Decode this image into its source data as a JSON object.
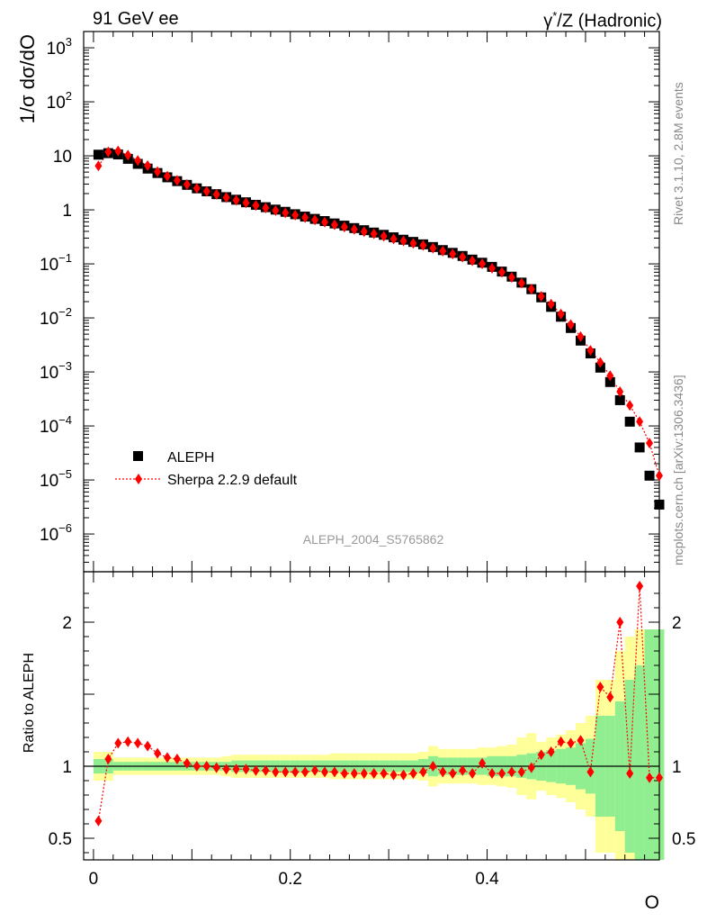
{
  "header": {
    "left": "91 GeV ee",
    "right_gamma": "γ",
    "right_sup": "*",
    "right_rest": "/Z (Hadronic)"
  },
  "side": {
    "rivet": "Rivet 3.1.10,  2.8M events",
    "source": "mcplots.cern.ch [arXiv:1306.3436]"
  },
  "colors": {
    "data": "#000000",
    "mc": "#ff0000",
    "band_inner": "#90ee90",
    "band_outer": "#ffff99"
  },
  "chart_data": [
    {
      "type": "scatter",
      "ylabel": "1/σ  dσ/dO",
      "yscale": "log",
      "ylim": [
        2e-07,
        2000
      ],
      "xlim": [
        -0.01,
        0.575
      ],
      "watermark": "ALEPH_2004_S5765862",
      "y_tick_labels": [
        "10^3",
        "10^2",
        "10",
        "1",
        "10^-1",
        "10^-2",
        "10^-3",
        "10^-4",
        "10^-5",
        "10^-6"
      ],
      "legend": {
        "placement": "bottom-left",
        "entries": [
          "ALEPH",
          "Sherpa 2.2.9 default"
        ]
      },
      "series": [
        {
          "name": "ALEPH",
          "marker": "square",
          "x": [
            0.005,
            0.015,
            0.025,
            0.035,
            0.045,
            0.055,
            0.065,
            0.075,
            0.085,
            0.095,
            0.105,
            0.115,
            0.125,
            0.135,
            0.145,
            0.155,
            0.165,
            0.175,
            0.185,
            0.195,
            0.205,
            0.215,
            0.225,
            0.235,
            0.245,
            0.255,
            0.265,
            0.275,
            0.285,
            0.295,
            0.305,
            0.315,
            0.325,
            0.335,
            0.345,
            0.355,
            0.365,
            0.375,
            0.385,
            0.395,
            0.405,
            0.415,
            0.425,
            0.435,
            0.445,
            0.455,
            0.465,
            0.475,
            0.485,
            0.495,
            0.505,
            0.515,
            0.525,
            0.535,
            0.545,
            0.555,
            0.565,
            0.575
          ],
          "y": [
            10.5,
            11.2,
            10.6,
            8.8,
            7.1,
            5.8,
            4.8,
            4.0,
            3.4,
            2.9,
            2.5,
            2.2,
            1.95,
            1.72,
            1.54,
            1.38,
            1.24,
            1.12,
            1.01,
            0.92,
            0.83,
            0.75,
            0.68,
            0.62,
            0.56,
            0.51,
            0.46,
            0.42,
            0.38,
            0.345,
            0.31,
            0.28,
            0.255,
            0.23,
            0.205,
            0.18,
            0.16,
            0.14,
            0.12,
            0.105,
            0.088,
            0.072,
            0.058,
            0.045,
            0.034,
            0.024,
            0.016,
            0.0105,
            0.0065,
            0.0038,
            0.0022,
            0.0012,
            0.00065,
            0.0003,
            0.00012,
            4e-05,
            1.2e-05,
            3.5e-06
          ]
        },
        {
          "name": "Sherpa 2.2.9 default",
          "marker": "diamond",
          "line": "dotted",
          "x": [
            0.005,
            0.015,
            0.025,
            0.035,
            0.045,
            0.055,
            0.065,
            0.075,
            0.085,
            0.095,
            0.105,
            0.115,
            0.125,
            0.135,
            0.145,
            0.155,
            0.165,
            0.175,
            0.185,
            0.195,
            0.205,
            0.215,
            0.225,
            0.235,
            0.245,
            0.255,
            0.265,
            0.275,
            0.285,
            0.295,
            0.305,
            0.315,
            0.325,
            0.335,
            0.345,
            0.355,
            0.365,
            0.375,
            0.385,
            0.395,
            0.405,
            0.415,
            0.425,
            0.435,
            0.445,
            0.455,
            0.465,
            0.475,
            0.485,
            0.495,
            0.505,
            0.515,
            0.525,
            0.535,
            0.545,
            0.555,
            0.565,
            0.575
          ],
          "y": [
            6.5,
            11.8,
            12.3,
            10.3,
            8.2,
            6.6,
            5.1,
            4.2,
            3.5,
            2.95,
            2.5,
            2.2,
            1.93,
            1.69,
            1.51,
            1.35,
            1.21,
            1.08,
            0.97,
            0.88,
            0.8,
            0.72,
            0.65,
            0.59,
            0.53,
            0.48,
            0.435,
            0.395,
            0.36,
            0.325,
            0.29,
            0.265,
            0.24,
            0.22,
            0.195,
            0.172,
            0.152,
            0.133,
            0.114,
            0.1,
            0.083,
            0.07,
            0.056,
            0.044,
            0.034,
            0.025,
            0.018,
            0.0118,
            0.0075,
            0.0045,
            0.0025,
            0.0015,
            0.00085,
            0.00043,
            0.00024,
            0.00012,
            4.8e-05,
            1.2e-05
          ]
        }
      ]
    },
    {
      "type": "scatter",
      "ylabel": "Ratio to ALEPH",
      "xlabel": "O",
      "ylim": [
        0.35,
        2.35
      ],
      "xlim": [
        -0.01,
        0.575
      ],
      "x_tick_labels": [
        "0",
        "0.2",
        "0.4"
      ],
      "y_tick_labels": [
        "0.5",
        "1",
        "2"
      ],
      "series": [
        {
          "name": "Sherpa 2.2.9 default",
          "x": [
            0.005,
            0.015,
            0.025,
            0.035,
            0.045,
            0.055,
            0.065,
            0.075,
            0.085,
            0.095,
            0.105,
            0.115,
            0.125,
            0.135,
            0.145,
            0.155,
            0.165,
            0.175,
            0.185,
            0.195,
            0.205,
            0.215,
            0.225,
            0.235,
            0.245,
            0.255,
            0.265,
            0.275,
            0.285,
            0.295,
            0.305,
            0.315,
            0.325,
            0.335,
            0.345,
            0.355,
            0.365,
            0.375,
            0.385,
            0.395,
            0.405,
            0.415,
            0.425,
            0.435,
            0.445,
            0.455,
            0.465,
            0.475,
            0.485,
            0.495,
            0.505,
            0.515,
            0.525,
            0.535,
            0.545,
            0.555,
            0.565,
            0.575
          ],
          "y": [
            0.62,
            1.05,
            1.16,
            1.17,
            1.16,
            1.14,
            1.09,
            1.06,
            1.05,
            1.02,
            1.0,
            1.0,
            0.99,
            0.98,
            0.98,
            0.98,
            0.97,
            0.97,
            0.96,
            0.96,
            0.96,
            0.96,
            0.97,
            0.96,
            0.96,
            0.95,
            0.95,
            0.95,
            0.95,
            0.95,
            0.94,
            0.94,
            0.95,
            0.96,
            1.0,
            0.96,
            0.95,
            0.97,
            0.95,
            1.02,
            0.95,
            0.95,
            0.96,
            0.96,
            0.99,
            1.08,
            1.1,
            1.17,
            1.16,
            1.18,
            0.96,
            1.55,
            1.48,
            2.0,
            0.95,
            2.25,
            0.92,
            0.92
          ]
        }
      ],
      "band_inner": [
        [
          0.05,
          0.05
        ],
        [
          0.05,
          0.05
        ],
        [
          0.03,
          0.03
        ],
        [
          0.03,
          0.03
        ],
        [
          0.03,
          0.03
        ],
        [
          0.03,
          0.03
        ],
        [
          0.03,
          0.03
        ],
        [
          0.03,
          0.03
        ],
        [
          0.03,
          0.03
        ],
        [
          0.03,
          0.03
        ],
        [
          0.03,
          0.03
        ],
        [
          0.03,
          0.03
        ],
        [
          0.03,
          0.03
        ],
        [
          0.03,
          0.03
        ],
        [
          0.04,
          0.04
        ],
        [
          0.04,
          0.04
        ],
        [
          0.04,
          0.04
        ],
        [
          0.04,
          0.04
        ],
        [
          0.04,
          0.04
        ],
        [
          0.04,
          0.04
        ],
        [
          0.04,
          0.04
        ],
        [
          0.04,
          0.04
        ],
        [
          0.04,
          0.04
        ],
        [
          0.04,
          0.04
        ],
        [
          0.04,
          0.04
        ],
        [
          0.04,
          0.04
        ],
        [
          0.04,
          0.04
        ],
        [
          0.04,
          0.04
        ],
        [
          0.04,
          0.04
        ],
        [
          0.04,
          0.04
        ],
        [
          0.04,
          0.04
        ],
        [
          0.04,
          0.04
        ],
        [
          0.04,
          0.04
        ],
        [
          0.05,
          0.05
        ],
        [
          0.07,
          0.07
        ],
        [
          0.06,
          0.06
        ],
        [
          0.06,
          0.06
        ],
        [
          0.06,
          0.06
        ],
        [
          0.06,
          0.06
        ],
        [
          0.06,
          0.06
        ],
        [
          0.07,
          0.07
        ],
        [
          0.07,
          0.07
        ],
        [
          0.07,
          0.07
        ],
        [
          0.08,
          0.08
        ],
        [
          0.09,
          0.09
        ],
        [
          0.1,
          0.1
        ],
        [
          0.11,
          0.11
        ],
        [
          0.12,
          0.12
        ],
        [
          0.13,
          0.13
        ],
        [
          0.16,
          0.16
        ],
        [
          0.19,
          0.19
        ],
        [
          0.35,
          0.35
        ],
        [
          0.35,
          0.35
        ],
        [
          0.45,
          0.45
        ],
        [
          0.6,
          0.6
        ],
        [
          0.7,
          0.7
        ],
        [
          0.95,
          0.95
        ],
        [
          0.95,
          0.95
        ]
      ],
      "band_outer": [
        [
          0.1,
          0.1
        ],
        [
          0.1,
          0.1
        ],
        [
          0.06,
          0.06
        ],
        [
          0.06,
          0.06
        ],
        [
          0.06,
          0.06
        ],
        [
          0.06,
          0.06
        ],
        [
          0.06,
          0.06
        ],
        [
          0.06,
          0.06
        ],
        [
          0.06,
          0.06
        ],
        [
          0.06,
          0.06
        ],
        [
          0.06,
          0.06
        ],
        [
          0.06,
          0.06
        ],
        [
          0.06,
          0.06
        ],
        [
          0.07,
          0.07
        ],
        [
          0.08,
          0.08
        ],
        [
          0.08,
          0.08
        ],
        [
          0.08,
          0.08
        ],
        [
          0.08,
          0.08
        ],
        [
          0.08,
          0.08
        ],
        [
          0.08,
          0.08
        ],
        [
          0.08,
          0.08
        ],
        [
          0.08,
          0.08
        ],
        [
          0.08,
          0.08
        ],
        [
          0.08,
          0.08
        ],
        [
          0.09,
          0.09
        ],
        [
          0.09,
          0.09
        ],
        [
          0.09,
          0.09
        ],
        [
          0.09,
          0.09
        ],
        [
          0.09,
          0.09
        ],
        [
          0.09,
          0.09
        ],
        [
          0.09,
          0.09
        ],
        [
          0.09,
          0.09
        ],
        [
          0.09,
          0.09
        ],
        [
          0.1,
          0.1
        ],
        [
          0.14,
          0.14
        ],
        [
          0.12,
          0.12
        ],
        [
          0.12,
          0.12
        ],
        [
          0.12,
          0.12
        ],
        [
          0.12,
          0.12
        ],
        [
          0.13,
          0.13
        ],
        [
          0.13,
          0.13
        ],
        [
          0.14,
          0.14
        ],
        [
          0.15,
          0.15
        ],
        [
          0.2,
          0.2
        ],
        [
          0.23,
          0.23
        ],
        [
          0.17,
          0.17
        ],
        [
          0.2,
          0.2
        ],
        [
          0.22,
          0.22
        ],
        [
          0.25,
          0.25
        ],
        [
          0.3,
          0.3
        ],
        [
          0.35,
          0.35
        ],
        [
          0.6,
          0.6
        ],
        [
          0.6,
          0.6
        ],
        [
          0.8,
          0.8
        ],
        [
          0.9,
          0.9
        ],
        [
          0.95,
          0.95
        ],
        [
          0.95,
          0.95
        ],
        [
          0.95,
          0.95
        ]
      ]
    }
  ]
}
